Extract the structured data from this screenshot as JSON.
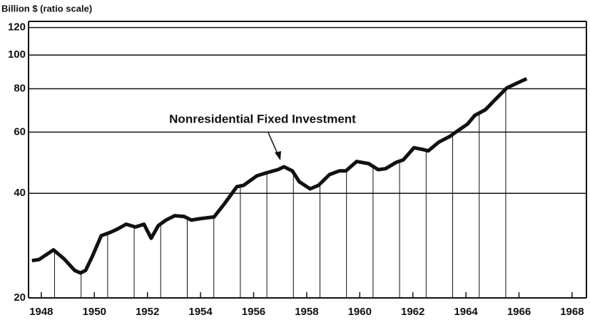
{
  "chart_data": {
    "type": "line",
    "y_axis_label": "Billion $ (ratio scale)",
    "annotation": "Nonresidential Fixed Investment",
    "log_scale": true,
    "grid": true,
    "color": "#111111",
    "xlim": [
      1947.52,
      1968.54
    ],
    "xticks": [
      1948,
      1950,
      1952,
      1954,
      1956,
      1958,
      1960,
      1962,
      1964,
      1966,
      1968
    ],
    "ylim": [
      20,
      125
    ],
    "yticks": [
      20,
      40,
      60,
      80,
      100,
      120
    ],
    "x": [
      1947.65,
      1947.92,
      1948.46,
      1948.86,
      1949.26,
      1949.48,
      1949.67,
      1949.94,
      1950.26,
      1950.61,
      1950.88,
      1951.2,
      1951.55,
      1951.87,
      1952.14,
      1952.41,
      1952.7,
      1953.03,
      1953.38,
      1953.65,
      1953.97,
      1954.51,
      1954.91,
      1955.37,
      1955.63,
      1956.12,
      1956.52,
      1956.92,
      1957.14,
      1957.46,
      1957.72,
      1958.13,
      1958.45,
      1958.86,
      1959.23,
      1959.48,
      1959.88,
      1960.34,
      1960.69,
      1960.97,
      1961.37,
      1961.64,
      1962.04,
      1962.37,
      1962.58,
      1962.98,
      1963.39,
      1963.66,
      1964.06,
      1964.33,
      1964.73,
      1965.13,
      1965.54,
      1965.94,
      1966.29
    ],
    "values": [
      25.6,
      25.8,
      27.5,
      25.9,
      24.0,
      23.6,
      24.0,
      26.5,
      30.2,
      30.9,
      31.6,
      32.6,
      32.0,
      32.6,
      29.7,
      32.3,
      33.5,
      34.5,
      34.3,
      33.5,
      33.8,
      34.2,
      37.4,
      41.8,
      42.2,
      44.9,
      45.9,
      46.8,
      47.7,
      46.4,
      43.2,
      41.2,
      42.2,
      45.3,
      46.4,
      46.4,
      49.4,
      48.7,
      46.8,
      47.1,
      49.1,
      49.9,
      54.1,
      53.5,
      53.0,
      56.2,
      58.3,
      60.3,
      63.3,
      67.0,
      69.6,
      74.8,
      80.4,
      83.1,
      85.5
    ]
  }
}
